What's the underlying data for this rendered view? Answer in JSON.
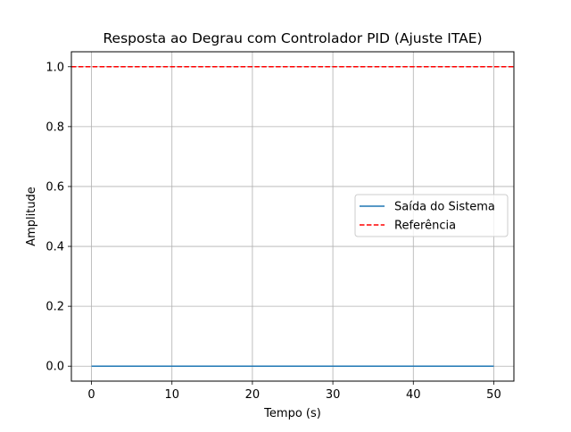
{
  "chart_data": {
    "type": "line",
    "title": "Resposta ao Degrau com Controlador PID (Ajuste ITAE)",
    "xlabel": "Tempo (s)",
    "ylabel": "Amplitude",
    "xlim": [
      -2.5,
      52.5
    ],
    "ylim": [
      -0.05,
      1.05
    ],
    "xticks": [
      0,
      10,
      20,
      30,
      40,
      50
    ],
    "yticks": [
      0.0,
      0.2,
      0.4,
      0.6,
      0.8,
      1.0
    ],
    "xtick_labels": [
      "0",
      "10",
      "20",
      "30",
      "40",
      "50"
    ],
    "ytick_labels": [
      "0.0",
      "0.2",
      "0.4",
      "0.6",
      "0.8",
      "1.0"
    ],
    "grid": true,
    "legend_position": "center-right",
    "series": [
      {
        "name": "Saída do Sistema",
        "color": "#1f77b4",
        "style": "solid",
        "x": [
          0,
          5,
          10,
          15,
          20,
          25,
          30,
          35,
          40,
          45,
          50
        ],
        "y": [
          0.0,
          0.0,
          0.0,
          0.0,
          0.0,
          0.0,
          0.0,
          0.0,
          0.0,
          0.0,
          0.0
        ]
      },
      {
        "name": "Referência",
        "color": "#ff0000",
        "style": "dashed",
        "x": [
          -2.5,
          52.5
        ],
        "y": [
          1.0,
          1.0
        ]
      }
    ]
  }
}
